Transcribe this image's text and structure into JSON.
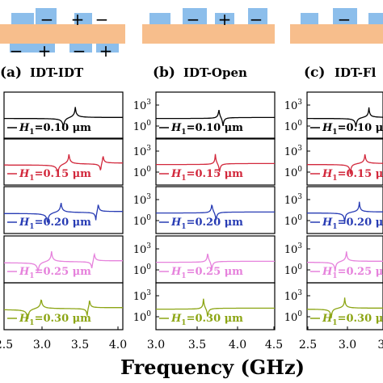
{
  "chart_data": [
    {
      "type": "line",
      "panel_label": "(a)",
      "title": "IDT-IDT",
      "electrode_signs": {
        "top": [
          "−",
          "+",
          "−"
        ],
        "bottom": [
          "−",
          "+",
          "−",
          "+"
        ]
      },
      "x_ticks": [
        "2.5",
        "3.0",
        "3.5",
        "4.0"
      ],
      "xlim": [
        2.5,
        4.0
      ],
      "y_scale": "log",
      "y_ticks": [],
      "series": [
        {
          "label_var": "H",
          "label_sub": "1",
          "label_val": "=0.10 μm",
          "color": "#000000",
          "resonances": [
            {
              "anti": 3.25,
              "res": 3.4
            }
          ]
        },
        {
          "label_var": "H",
          "label_sub": "1",
          "label_val": "=0.15 μm",
          "color": "#d2283c",
          "resonances": [
            {
              "anti": 3.18,
              "res": 3.32
            },
            {
              "anti": 3.72,
              "res": 3.75
            }
          ]
        },
        {
          "label_var": "H",
          "label_sub": "1",
          "label_val": "=0.20 μm",
          "color": "#283cb4",
          "resonances": [
            {
              "anti": 3.05,
              "res": 3.22
            },
            {
              "anti": 3.66,
              "res": 3.69
            }
          ]
        },
        {
          "label_var": "H",
          "label_sub": "1",
          "label_val": "=0.25 μm",
          "color": "#e682dc",
          "resonances": [
            {
              "anti": 2.93,
              "res": 3.1
            },
            {
              "anti": 3.61,
              "res": 3.64
            }
          ]
        },
        {
          "label_var": "H",
          "label_sub": "1",
          "label_val": "=0.30 μm",
          "color": "#8ca514",
          "resonances": [
            {
              "anti": 2.8,
              "res": 2.97
            },
            {
              "anti": 3.55,
              "res": 3.58
            }
          ]
        }
      ]
    },
    {
      "type": "line",
      "panel_label": "(b)",
      "title": "IDT-Open",
      "electrode_signs": {
        "top": [
          "−",
          "+",
          "−"
        ],
        "bottom": []
      },
      "x_ticks": [
        "3.0",
        "3.5",
        "4.0",
        "4.5"
      ],
      "xlim": [
        2.9,
        4.6
      ],
      "y_scale": "log",
      "y_ticks": [
        "10^3",
        "10^0"
      ],
      "series": [
        {
          "label_var": "H",
          "label_sub": "1",
          "label_val": "=0.10 μm",
          "color": "#000000",
          "resonances": [
            {
              "res": 3.8,
              "anti": 3.86
            }
          ]
        },
        {
          "label_var": "H",
          "label_sub": "1",
          "label_val": "=0.15 μm",
          "color": "#d2283c",
          "resonances": [
            {
              "res": 3.75,
              "anti": 3.81
            }
          ]
        },
        {
          "label_var": "H",
          "label_sub": "1",
          "label_val": "=0.20 μm",
          "color": "#283cb4",
          "resonances": [
            {
              "res": 3.7,
              "anti": 3.76
            }
          ]
        },
        {
          "label_var": "H",
          "label_sub": "1",
          "label_val": "=0.25 μm",
          "color": "#e682dc",
          "resonances": [
            {
              "res": 3.64,
              "anti": 3.7
            }
          ]
        },
        {
          "label_var": "H",
          "label_sub": "1",
          "label_val": "=0.30 μm",
          "color": "#8ca514",
          "resonances": [
            {
              "res": 3.58,
              "anti": 3.64
            }
          ]
        }
      ]
    },
    {
      "type": "line",
      "panel_label": "(c)",
      "title": "IDT-Fl",
      "electrode_signs": {
        "top": [
          "−"
        ],
        "bottom": []
      },
      "x_ticks": [
        "2.5",
        "3.0",
        "3."
      ],
      "xlim": [
        2.35,
        3.7
      ],
      "y_scale": "log",
      "y_ticks": [
        "10^3",
        "10^0"
      ],
      "series": [
        {
          "label_var": "H",
          "label_sub": "1",
          "label_val": "=0.10 μm",
          "color": "#000000",
          "resonances": [
            {
              "anti": 3.22,
              "res": 3.45
            }
          ]
        },
        {
          "label_var": "H",
          "label_sub": "1",
          "label_val": "=0.15 μm",
          "color": "#d2283c",
          "resonances": [
            {
              "anti": 3.12,
              "res": 3.38
            }
          ]
        },
        {
          "label_var": "H",
          "label_sub": "1",
          "label_val": "=0.20 μm",
          "color": "#283cb4",
          "resonances": [
            {
              "anti": 3.02,
              "res": 3.28
            }
          ]
        },
        {
          "label_var": "H",
          "label_sub": "1",
          "label_val": "=0.25 μm",
          "color": "#e682dc",
          "resonances": [
            {
              "anti": 2.85,
              "res": 3.05
            }
          ]
        },
        {
          "label_var": "H",
          "label_sub": "1",
          "label_val": "=0.30 μm",
          "color": "#8ca514",
          "resonances": [
            {
              "anti": 2.78,
              "res": 3.02
            }
          ]
        }
      ]
    }
  ],
  "xlabel": "Frequency (GHz)",
  "colors": {
    "substrate": "#f7be8c",
    "electrode": "#8cbeeb"
  }
}
